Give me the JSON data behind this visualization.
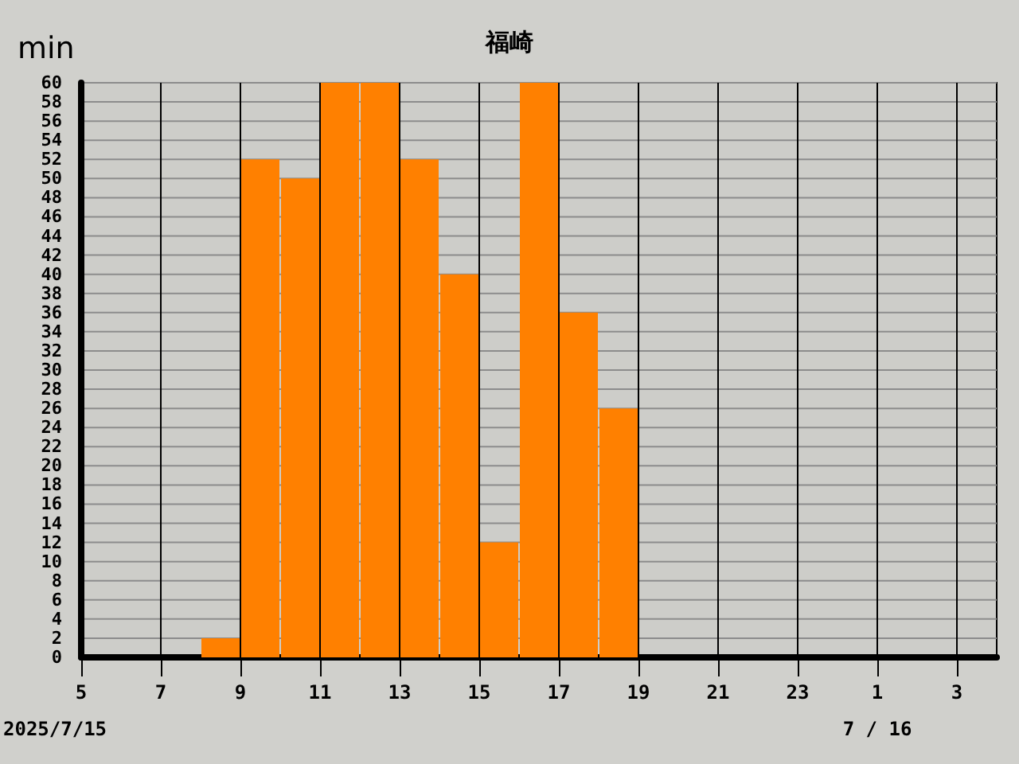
{
  "chart_data": {
    "type": "bar",
    "title": "福崎",
    "ylabel": "min",
    "x": [
      "2025-07-15T05:30",
      "2025-07-15T06:30",
      "2025-07-15T07:30",
      "2025-07-15T08:30",
      "2025-07-15T09:30",
      "2025-07-15T10:30",
      "2025-07-15T11:30",
      "2025-07-15T12:30",
      "2025-07-15T13:30",
      "2025-07-15T14:30",
      "2025-07-15T15:30",
      "2025-07-15T16:30",
      "2025-07-15T17:30",
      "2025-07-15T18:30",
      "2025-07-15T19:30",
      "2025-07-15T20:30",
      "2025-07-15T21:30",
      "2025-07-15T22:30",
      "2025-07-15T23:30",
      "2025-07-16T00:30",
      "2025-07-16T01:30",
      "2025-07-16T02:30",
      "2025-07-16T03:30"
    ],
    "values": [
      0,
      0,
      0,
      2,
      52,
      50,
      60,
      60,
      52,
      40,
      12,
      60,
      36,
      26,
      0,
      0,
      0,
      0,
      0,
      0,
      0,
      0,
      0
    ],
    "color": "#ff8000",
    "xlim": [
      "2025-07-15T05:00",
      "2025-07-16T04:00"
    ],
    "xticks": [
      {
        "value": "2025-07-15T05:00",
        "label": "5"
      },
      {
        "value": "2025-07-15T07:00",
        "label": "7"
      },
      {
        "value": "2025-07-15T09:00",
        "label": "9"
      },
      {
        "value": "2025-07-15T11:00",
        "label": "11"
      },
      {
        "value": "2025-07-15T13:00",
        "label": "13"
      },
      {
        "value": "2025-07-15T15:00",
        "label": "15"
      },
      {
        "value": "2025-07-15T17:00",
        "label": "17"
      },
      {
        "value": "2025-07-15T19:00",
        "label": "19"
      },
      {
        "value": "2025-07-15T21:00",
        "label": "21"
      },
      {
        "value": "2025-07-15T23:00",
        "label": "23"
      },
      {
        "value": "2025-07-16T01:00",
        "label": "1"
      },
      {
        "value": "2025-07-16T03:00",
        "label": "3"
      }
    ],
    "ylim": [
      0,
      60
    ],
    "yticks": [
      0,
      2,
      4,
      6,
      8,
      10,
      12,
      14,
      16,
      18,
      20,
      22,
      24,
      26,
      28,
      30,
      32,
      34,
      36,
      38,
      40,
      42,
      44,
      46,
      48,
      50,
      52,
      54,
      56,
      58,
      60
    ],
    "grid": true,
    "annotations": [
      "2025/7/15",
      "7 / 16"
    ]
  }
}
